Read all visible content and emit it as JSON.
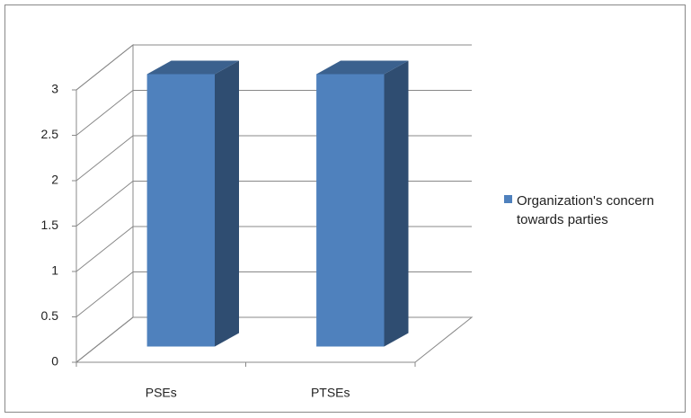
{
  "chart_data": {
    "type": "bar3d",
    "categories": [
      "PSEs",
      "PTSEs"
    ],
    "series": [
      {
        "name": "Organization's concern towards parties",
        "color": "#4f81bd",
        "values": [
          3,
          3
        ]
      }
    ],
    "ylim": [
      0,
      3
    ],
    "yticks": [
      0,
      0.5,
      1,
      1.5,
      2,
      2.5,
      3
    ],
    "grid": true,
    "legend": "right"
  }
}
